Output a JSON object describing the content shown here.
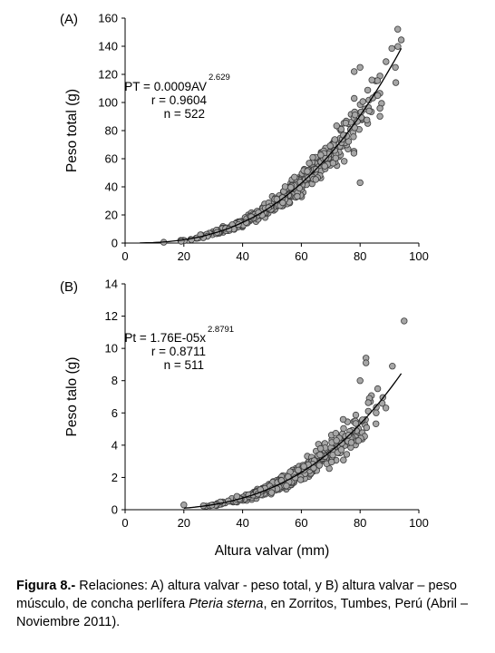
{
  "chart_data": [
    {
      "type": "scatter",
      "panel_label": "(A)",
      "xlabel": "",
      "ylabel": "Peso total (g)",
      "xlim": [
        0,
        100
      ],
      "ylim": [
        0,
        160
      ],
      "xticks": [
        0,
        20,
        40,
        60,
        80,
        100
      ],
      "yticks": [
        0,
        20,
        40,
        60,
        80,
        100,
        120,
        140,
        160
      ],
      "grid": false,
      "annotation": {
        "equation_main": "PT = 0.0009AV",
        "equation_exponent": "2.629",
        "r": "r = 0.9604",
        "n": "n = 522"
      },
      "fit": {
        "a": 0.0009,
        "b": 2.629,
        "x_range": [
          5,
          94
        ]
      },
      "scatter_model": {
        "count": 522,
        "seed": 11,
        "x_min": 4,
        "x_max": 94,
        "x_mode": 64,
        "spread": 0.17,
        "extra_points": [
          [
            94,
            144.5
          ],
          [
            92,
            125
          ],
          [
            80,
            125
          ],
          [
            78,
            122
          ],
          [
            84,
            116
          ],
          [
            86,
            105
          ],
          [
            80,
            43
          ]
        ]
      }
    },
    {
      "type": "scatter",
      "panel_label": "(B)",
      "xlabel": "Altura valvar (mm)",
      "ylabel": "Peso talo (g)",
      "xlim": [
        0,
        100
      ],
      "ylim": [
        0,
        14
      ],
      "xticks": [
        0,
        20,
        40,
        60,
        80,
        100
      ],
      "yticks": [
        0,
        2,
        4,
        6,
        8,
        10,
        12,
        14
      ],
      "grid": false,
      "annotation": {
        "equation_main": "Pt = 1.76E-05x",
        "equation_exponent": "2.8791",
        "r": "r = 0.8711",
        "n": "n = 511"
      },
      "fit": {
        "a": 1.76e-05,
        "b": 2.8791,
        "x_range": [
          20,
          94
        ]
      },
      "scatter_model": {
        "count": 511,
        "seed": 23,
        "x_min": 20,
        "x_max": 92,
        "x_mode": 62,
        "spread": 0.22,
        "extra_points": [
          [
            95,
            11.7
          ],
          [
            91,
            8.9
          ],
          [
            82,
            9.4
          ],
          [
            82,
            9.1
          ],
          [
            80,
            8.0
          ],
          [
            86,
            7.5
          ],
          [
            20,
            0.3
          ]
        ]
      }
    }
  ],
  "caption": {
    "lead": "Figura 8.-",
    "text_before": " Relaciones: A) altura valvar - peso total, y B) altura valvar – peso músculo, de concha perlífera ",
    "species": "Pteria sterna",
    "text_after": ", en Zorritos, Tumbes, Perú (Abril – Noviembre 2011)."
  },
  "colors": {
    "marker_fill": "#a6a6a6",
    "marker_stroke": "#3c3c3c",
    "fit_line": "#000000",
    "axis": "#000000"
  }
}
